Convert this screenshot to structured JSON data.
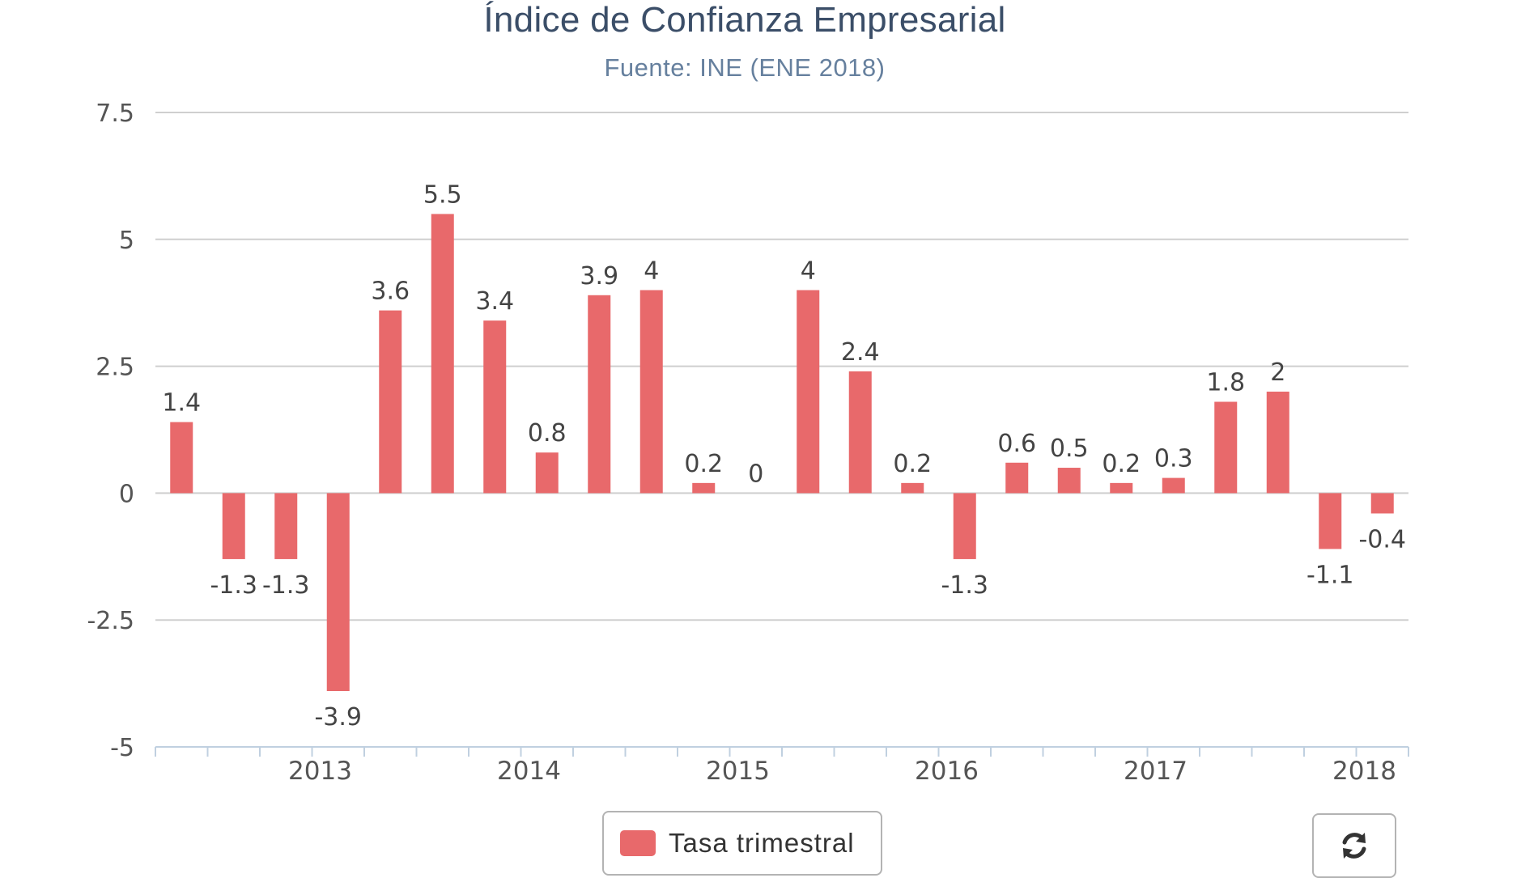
{
  "chart_data": {
    "type": "bar",
    "title": "Índice de Confianza Empresarial",
    "subtitle": "Fuente: INE (ENE 2018)",
    "xlabel": "",
    "ylabel": "",
    "ylim": [
      -5,
      7.5
    ],
    "y_ticks": [
      "7.5",
      "5",
      "2.5",
      "0",
      "-2.5",
      "-5"
    ],
    "y_tick_values": [
      7.5,
      5,
      2.5,
      0,
      -2.5,
      -5
    ],
    "x_tick_labels": [
      "2013",
      "2014",
      "2015",
      "2016",
      "2017",
      "2018"
    ],
    "grid": true,
    "legend": "bottom-center",
    "series": [
      {
        "name": "Tasa trimestral",
        "color": "#e8696b",
        "values": [
          1.4,
          -1.3,
          -1.3,
          -3.9,
          3.6,
          5.5,
          3.4,
          0.8,
          3.9,
          4,
          0.2,
          0,
          4,
          2.4,
          0.2,
          -1.3,
          0.6,
          0.5,
          0.2,
          0.3,
          1.8,
          2,
          -1.1,
          -0.4
        ],
        "data_labels": [
          "1.4",
          "-1.3",
          "-1.3",
          "-3.9",
          "3.6",
          "5.5",
          "3.4",
          "0.8",
          "3.9",
          "4",
          "0.2",
          "0",
          "4",
          "2.4",
          "0.2",
          "-1.3",
          "0.6",
          "0.5",
          "0.2",
          "0.3",
          "1.8",
          "2",
          "-1.1",
          "-0.4"
        ]
      }
    ]
  },
  "legend": {
    "label": "Tasa trimestral",
    "color": "#e8696b"
  },
  "controls": {
    "refresh_icon": "refresh-icon"
  }
}
